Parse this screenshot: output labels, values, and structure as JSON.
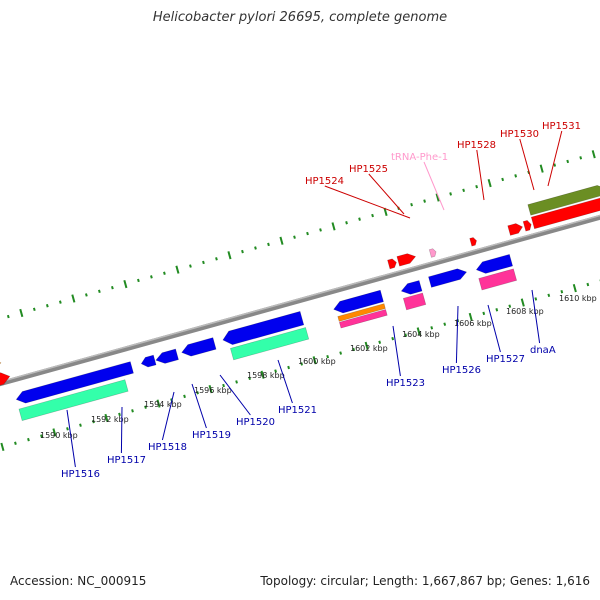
{
  "title": "Helicobacter pylori 26695, complete genome",
  "footer": {
    "accession": "Accession: NC_000915",
    "topology": "Topology: circular; Length: 1,667,867 bp; Genes: 1,616"
  },
  "colors": {
    "backbone": "#888888",
    "tick": "#228b22",
    "forward_label": "#cc0000",
    "reverse_label": "#0000aa",
    "trna_label": "#ff99cc"
  },
  "scale": {
    "unit": "kbp",
    "labels": [
      "1590 kbp",
      "1592 kbp",
      "1594 kbp",
      "1596 kbp",
      "1598 kbp",
      "1600 kbp",
      "1602 kbp",
      "1604 kbp",
      "1606 kbp",
      "1608 kbp",
      "1610 kbp"
    ]
  },
  "forward_labels": [
    "HP1524",
    "HP1525",
    "tRNA-Phe-1",
    "HP1528",
    "HP1530",
    "HP1531"
  ],
  "reverse_labels": [
    "HP1516",
    "HP1517",
    "HP1518",
    "HP1519",
    "HP1520",
    "HP1521",
    "HP1523",
    "HP1526",
    "HP1527",
    "dnaA"
  ]
}
